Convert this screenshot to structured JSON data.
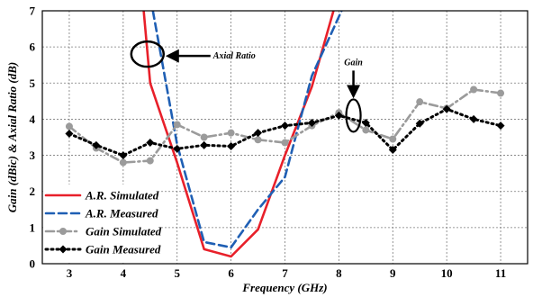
{
  "chart_data": {
    "type": "line",
    "xlabel": "Frequency (GHz)",
    "ylabel": "Gain (dBic) & Axial Ratio (dB)",
    "xlim": [
      2.5,
      11.5
    ],
    "ylim": [
      0,
      7
    ],
    "xticks": [
      "3",
      "4",
      "5",
      "6",
      "7",
      "8",
      "9",
      "10",
      "11"
    ],
    "yticks": [
      "0",
      "1",
      "2",
      "3",
      "4",
      "5",
      "6",
      "7"
    ],
    "grid": true,
    "legend_position": "bottom-left",
    "series": [
      {
        "name": "A.R. Simulated",
        "color": "#e8202a",
        "style": "solid",
        "marker": "none",
        "x": [
          4.38,
          4.5,
          5.0,
          5.5,
          6.0,
          6.5,
          7.0,
          7.5,
          7.9
        ],
        "y": [
          7.0,
          5.0,
          2.8,
          0.4,
          0.2,
          0.95,
          3.0,
          4.9,
          7.0
        ]
      },
      {
        "name": "A.R. Measured",
        "color": "#1f5fb4",
        "style": "dashed",
        "marker": "none",
        "x": [
          4.55,
          5.0,
          5.5,
          6.0,
          6.5,
          7.0,
          7.5,
          8.05
        ],
        "y": [
          7.0,
          3.3,
          0.6,
          0.45,
          1.5,
          2.4,
          5.2,
          7.0
        ]
      },
      {
        "name": "Gain Simulated",
        "color": "#9b9b9b",
        "style": "dashdot",
        "marker": "circle",
        "x": [
          3.0,
          3.5,
          4.0,
          4.5,
          5.0,
          5.5,
          6.0,
          6.5,
          7.0,
          7.5,
          8.0,
          8.5,
          9.0,
          9.5,
          10.0,
          10.5,
          11.0
        ],
        "y": [
          3.8,
          3.2,
          2.8,
          2.85,
          3.85,
          3.5,
          3.62,
          3.43,
          3.35,
          3.82,
          4.18,
          3.7,
          3.45,
          4.48,
          4.3,
          4.82,
          4.72
        ]
      },
      {
        "name": "Gain Measured",
        "color": "#000000",
        "style": "dotted",
        "marker": "diamond",
        "x": [
          3.0,
          3.5,
          4.0,
          4.5,
          5.0,
          5.5,
          6.0,
          6.5,
          7.0,
          7.5,
          8.0,
          8.5,
          9.0,
          9.5,
          10.0,
          10.5,
          11.0
        ],
        "y": [
          3.6,
          3.28,
          3.0,
          3.35,
          3.18,
          3.28,
          3.25,
          3.62,
          3.82,
          3.9,
          4.1,
          3.9,
          3.15,
          3.88,
          4.28,
          4.0,
          3.82
        ]
      }
    ],
    "annotations": [
      {
        "text": "Axial Ratio",
        "ellipse_at": [
          4.45,
          5.8
        ],
        "label_at": [
          8.7,
          6.55
        ]
      },
      {
        "text": "Gain",
        "ellipse_at": [
          8.27,
          4.1
        ],
        "label_at": [
          8.27,
          6.0
        ]
      }
    ]
  }
}
